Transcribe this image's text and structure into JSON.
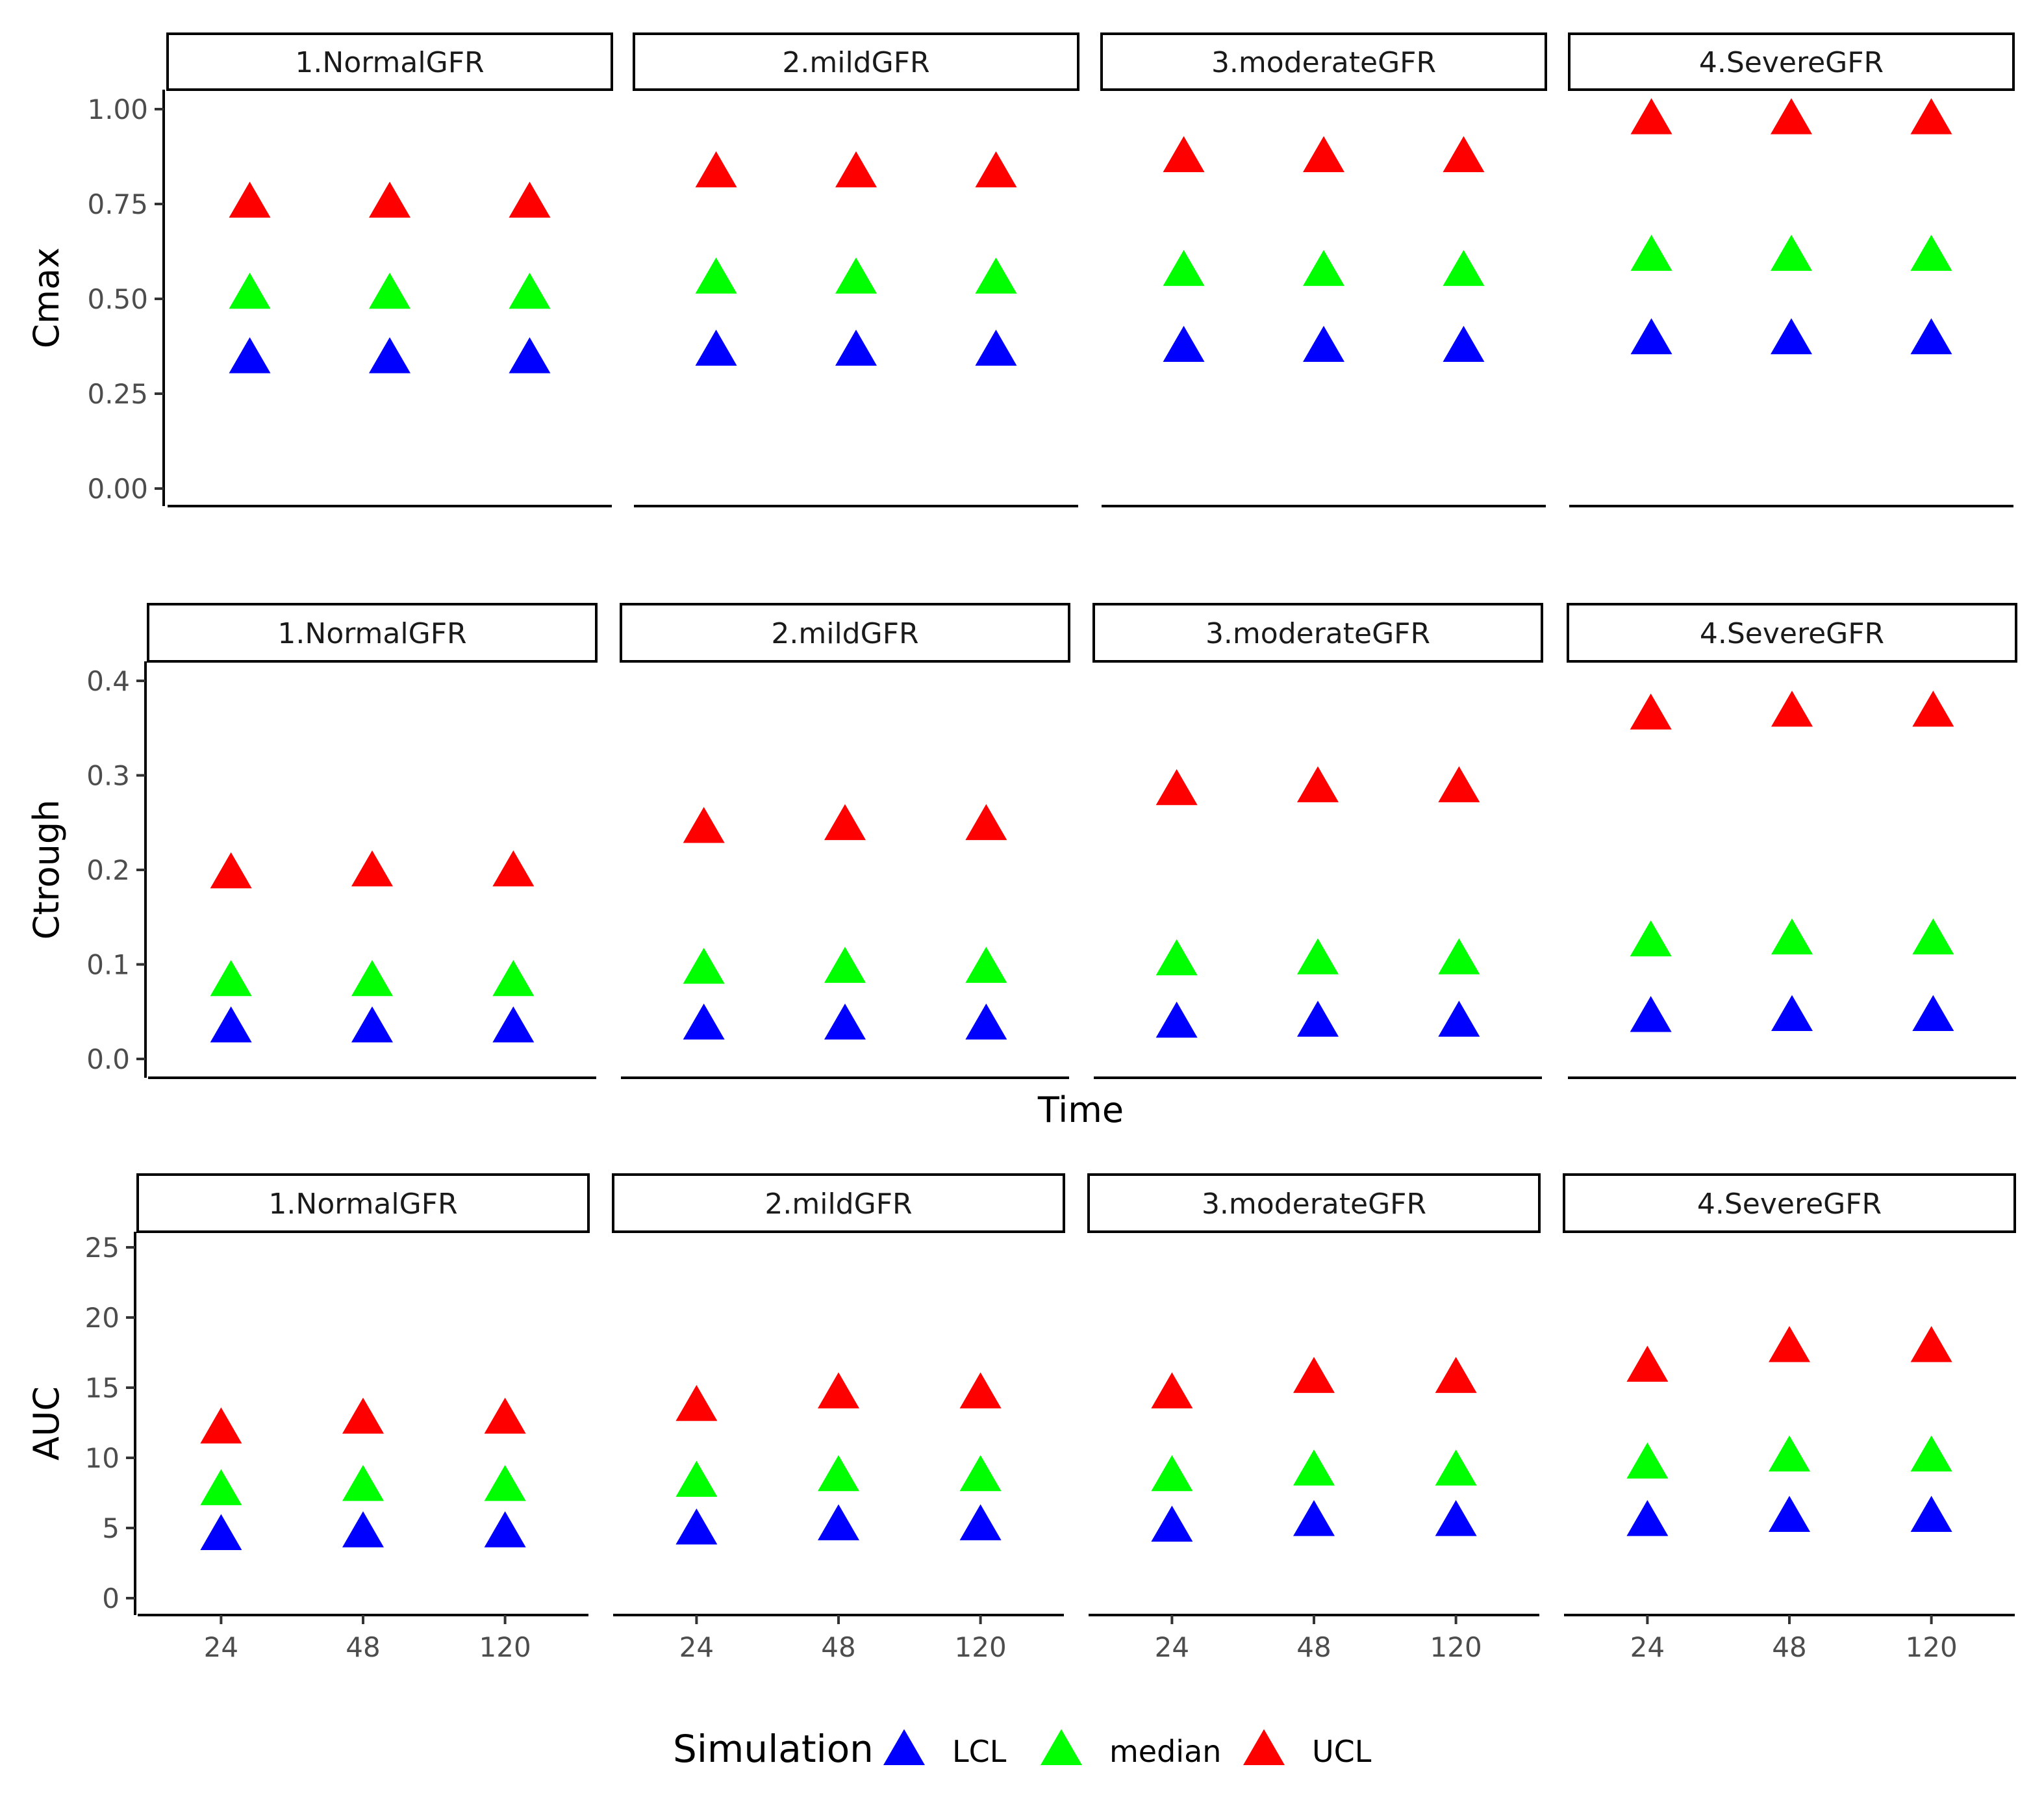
{
  "chart_data": {
    "type": "scatter",
    "x_label": "Time",
    "x_categories": [
      "24",
      "48",
      "120"
    ],
    "legend": {
      "title": "Simulation",
      "position": "bottom",
      "entries": [
        {
          "name": "LCL",
          "color": "#0000ff"
        },
        {
          "name": "median",
          "color": "#00ff00"
        },
        {
          "name": "UCL",
          "color": "#ff0000"
        }
      ]
    },
    "facets": [
      "1.NormalGFR",
      "2.mildGFR",
      "3.moderateGFR",
      "4.SevereGFR"
    ],
    "panels": [
      {
        "ylabel": "Cmax",
        "ylim": [
          0,
          1.05
        ],
        "yticks": [
          0,
          0.25,
          0.5,
          0.75,
          1.0
        ],
        "ytick_labels": [
          "0.00",
          "0.25",
          "0.50",
          "0.75",
          "1.00"
        ],
        "series": {
          "LCL": [
            [
              0.34,
              0.34,
              0.34
            ],
            [
              0.36,
              0.36,
              0.36
            ],
            [
              0.37,
              0.37,
              0.37
            ],
            [
              0.39,
              0.39,
              0.39
            ]
          ],
          "median": [
            [
              0.51,
              0.51,
              0.51
            ],
            [
              0.55,
              0.55,
              0.55
            ],
            [
              0.57,
              0.57,
              0.57
            ],
            [
              0.61,
              0.61,
              0.61
            ]
          ],
          "UCL": [
            [
              0.75,
              0.75,
              0.75
            ],
            [
              0.83,
              0.83,
              0.83
            ],
            [
              0.87,
              0.87,
              0.87
            ],
            [
              0.97,
              0.97,
              0.97
            ]
          ]
        }
      },
      {
        "ylabel": "Ctrough",
        "ylim": [
          0,
          0.42
        ],
        "yticks": [
          0,
          0.1,
          0.2,
          0.3,
          0.4
        ],
        "ytick_labels": [
          "0.0",
          "0.1",
          "0.2",
          "0.3",
          "0.4"
        ],
        "series": {
          "LCL": [
            [
              0.032,
              0.032,
              0.032
            ],
            [
              0.035,
              0.035,
              0.035
            ],
            [
              0.037,
              0.038,
              0.038
            ],
            [
              0.043,
              0.044,
              0.044
            ]
          ],
          "median": [
            [
              0.081,
              0.081,
              0.081
            ],
            [
              0.094,
              0.095,
              0.095
            ],
            [
              0.103,
              0.104,
              0.104
            ],
            [
              0.123,
              0.125,
              0.125
            ]
          ],
          "UCL": [
            [
              0.195,
              0.197,
              0.197
            ],
            [
              0.243,
              0.246,
              0.246
            ],
            [
              0.283,
              0.286,
              0.286
            ],
            [
              0.363,
              0.366,
              0.366
            ]
          ]
        }
      },
      {
        "ylabel": "AUC",
        "ylim": [
          0,
          26
        ],
        "yticks": [
          0,
          5,
          10,
          15,
          20,
          25
        ],
        "ytick_labels": [
          "0",
          "5",
          "10",
          "15",
          "20",
          "25"
        ],
        "series": {
          "LCL": [
            [
              4.4,
              4.6,
              4.6
            ],
            [
              4.8,
              5.1,
              5.1
            ],
            [
              5.0,
              5.4,
              5.4
            ],
            [
              5.4,
              5.7,
              5.7
            ]
          ],
          "median": [
            [
              7.6,
              7.9,
              7.9
            ],
            [
              8.2,
              8.6,
              8.6
            ],
            [
              8.6,
              9.0,
              9.0
            ],
            [
              9.5,
              10.0,
              10.0
            ]
          ],
          "UCL": [
            [
              12.0,
              12.7,
              12.7
            ],
            [
              13.6,
              14.5,
              14.5
            ],
            [
              14.5,
              15.6,
              15.6
            ],
            [
              16.4,
              17.8,
              17.8
            ]
          ]
        }
      }
    ]
  }
}
